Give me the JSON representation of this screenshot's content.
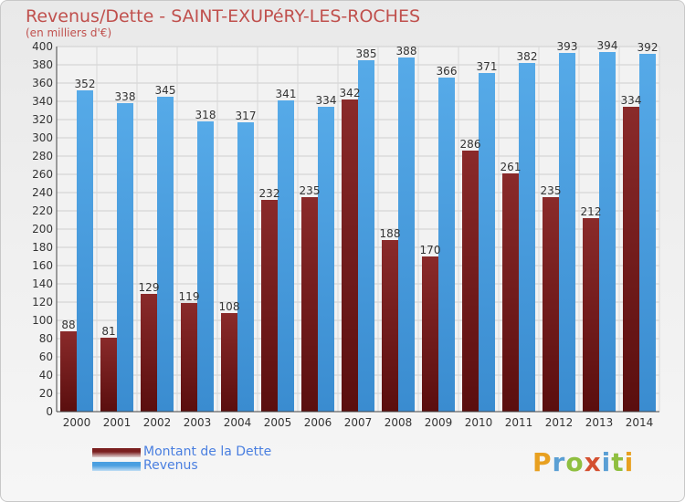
{
  "header": {
    "title": "Revenus/Dette - SAINT-EXUPéRY-LES-ROCHES",
    "subtitle": "(en milliers d'€)"
  },
  "legend": [
    {
      "label": "Montant de la Dette",
      "color": "#7a1f1f"
    },
    {
      "label": "Revenus",
      "color": "#4a9fe0"
    }
  ],
  "logo": {
    "letters": [
      "P",
      "r",
      "o",
      "x",
      "i",
      "t",
      "i"
    ],
    "colors": [
      "#e8a020",
      "#5a9fd4",
      "#8fbf40",
      "#d45030",
      "#5a9fd4",
      "#8fbf40",
      "#e8a020"
    ]
  },
  "chart_data": {
    "type": "bar",
    "categories": [
      "2000",
      "2001",
      "2002",
      "2003",
      "2004",
      "2005",
      "2006",
      "2007",
      "2008",
      "2009",
      "2010",
      "2011",
      "2012",
      "2013",
      "2014"
    ],
    "series": [
      {
        "name": "Montant de la Dette",
        "color": "#7a1f1f",
        "values": [
          88,
          81,
          129,
          119,
          108,
          232,
          235,
          342,
          188,
          170,
          286,
          261,
          235,
          212,
          334
        ]
      },
      {
        "name": "Revenus",
        "color": "#4a9fe0",
        "values": [
          352,
          338,
          345,
          318,
          317,
          341,
          334,
          385,
          388,
          366,
          371,
          382,
          393,
          394,
          392
        ]
      }
    ],
    "ylim": [
      0,
      400
    ],
    "ytick_step": 20,
    "grid": true
  }
}
